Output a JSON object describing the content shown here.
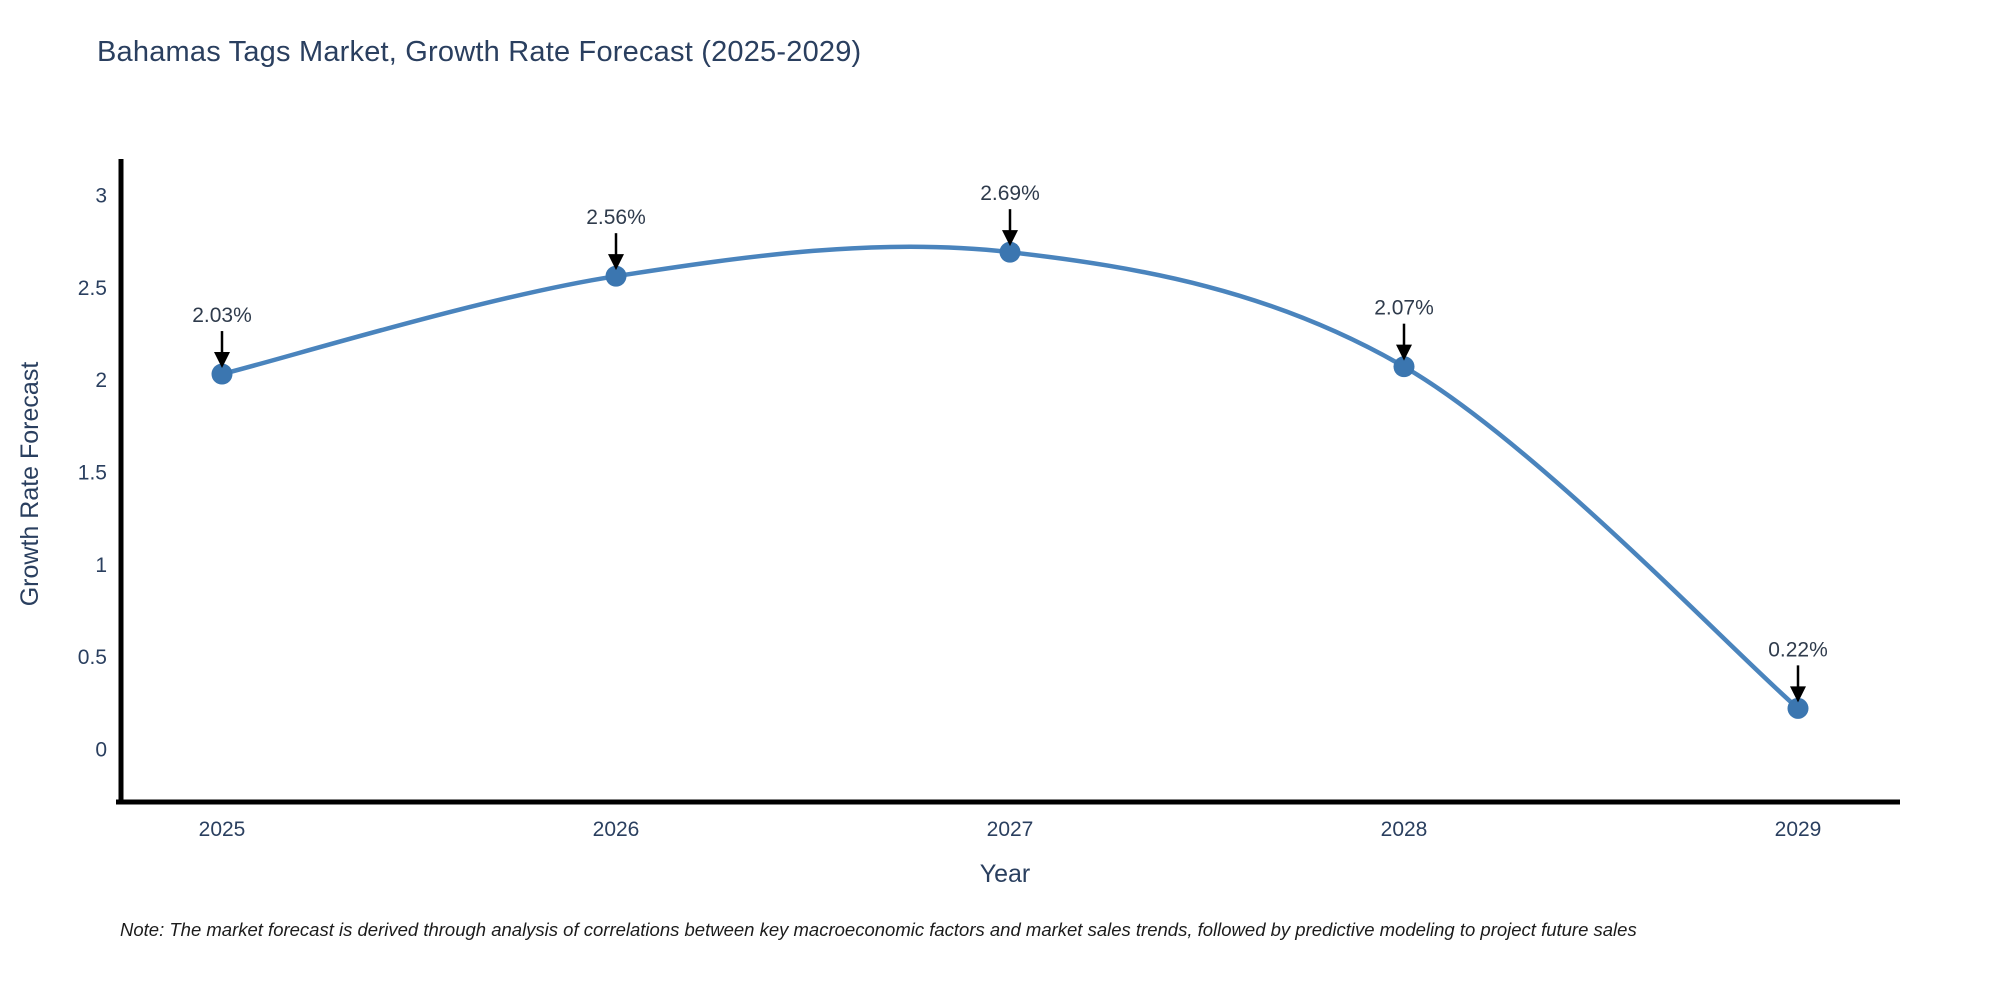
{
  "title": "Bahamas Tags Market, Growth Rate Forecast (2025-2029)",
  "note": "Note: The market forecast is derived through analysis of correlations between key macroeconomic factors and market sales trends, followed by predictive modeling to project future sales",
  "chart_data": {
    "type": "line",
    "line_shape": "spline",
    "title": "Bahamas Tags Market, Growth Rate Forecast (2025-2029)",
    "xlabel": "Year",
    "ylabel": "Growth Rate Forecast",
    "categories": [
      "2025",
      "2026",
      "2027",
      "2028",
      "2029"
    ],
    "x": [
      2025,
      2026,
      2027,
      2028,
      2029
    ],
    "values": [
      2.03,
      2.56,
      2.69,
      2.07,
      0.22
    ],
    "point_labels": [
      "2.03%",
      "2.56%",
      "2.69%",
      "2.07%",
      "0.22%"
    ],
    "yticks": [
      0,
      0.5,
      1,
      1.5,
      2,
      2.5,
      3
    ],
    "ylim": [
      -0.29,
      3.28
    ],
    "grid": false,
    "legend": "none",
    "annotations": "each point labeled with percent value and a downward black arrow",
    "colors": {
      "line": "#4a84bd",
      "marker": "#3b76b0",
      "axis": "#000000",
      "tick_text": "#2a3f5f",
      "annotation_text": "#2f3b4c",
      "arrow": "#000000"
    }
  }
}
